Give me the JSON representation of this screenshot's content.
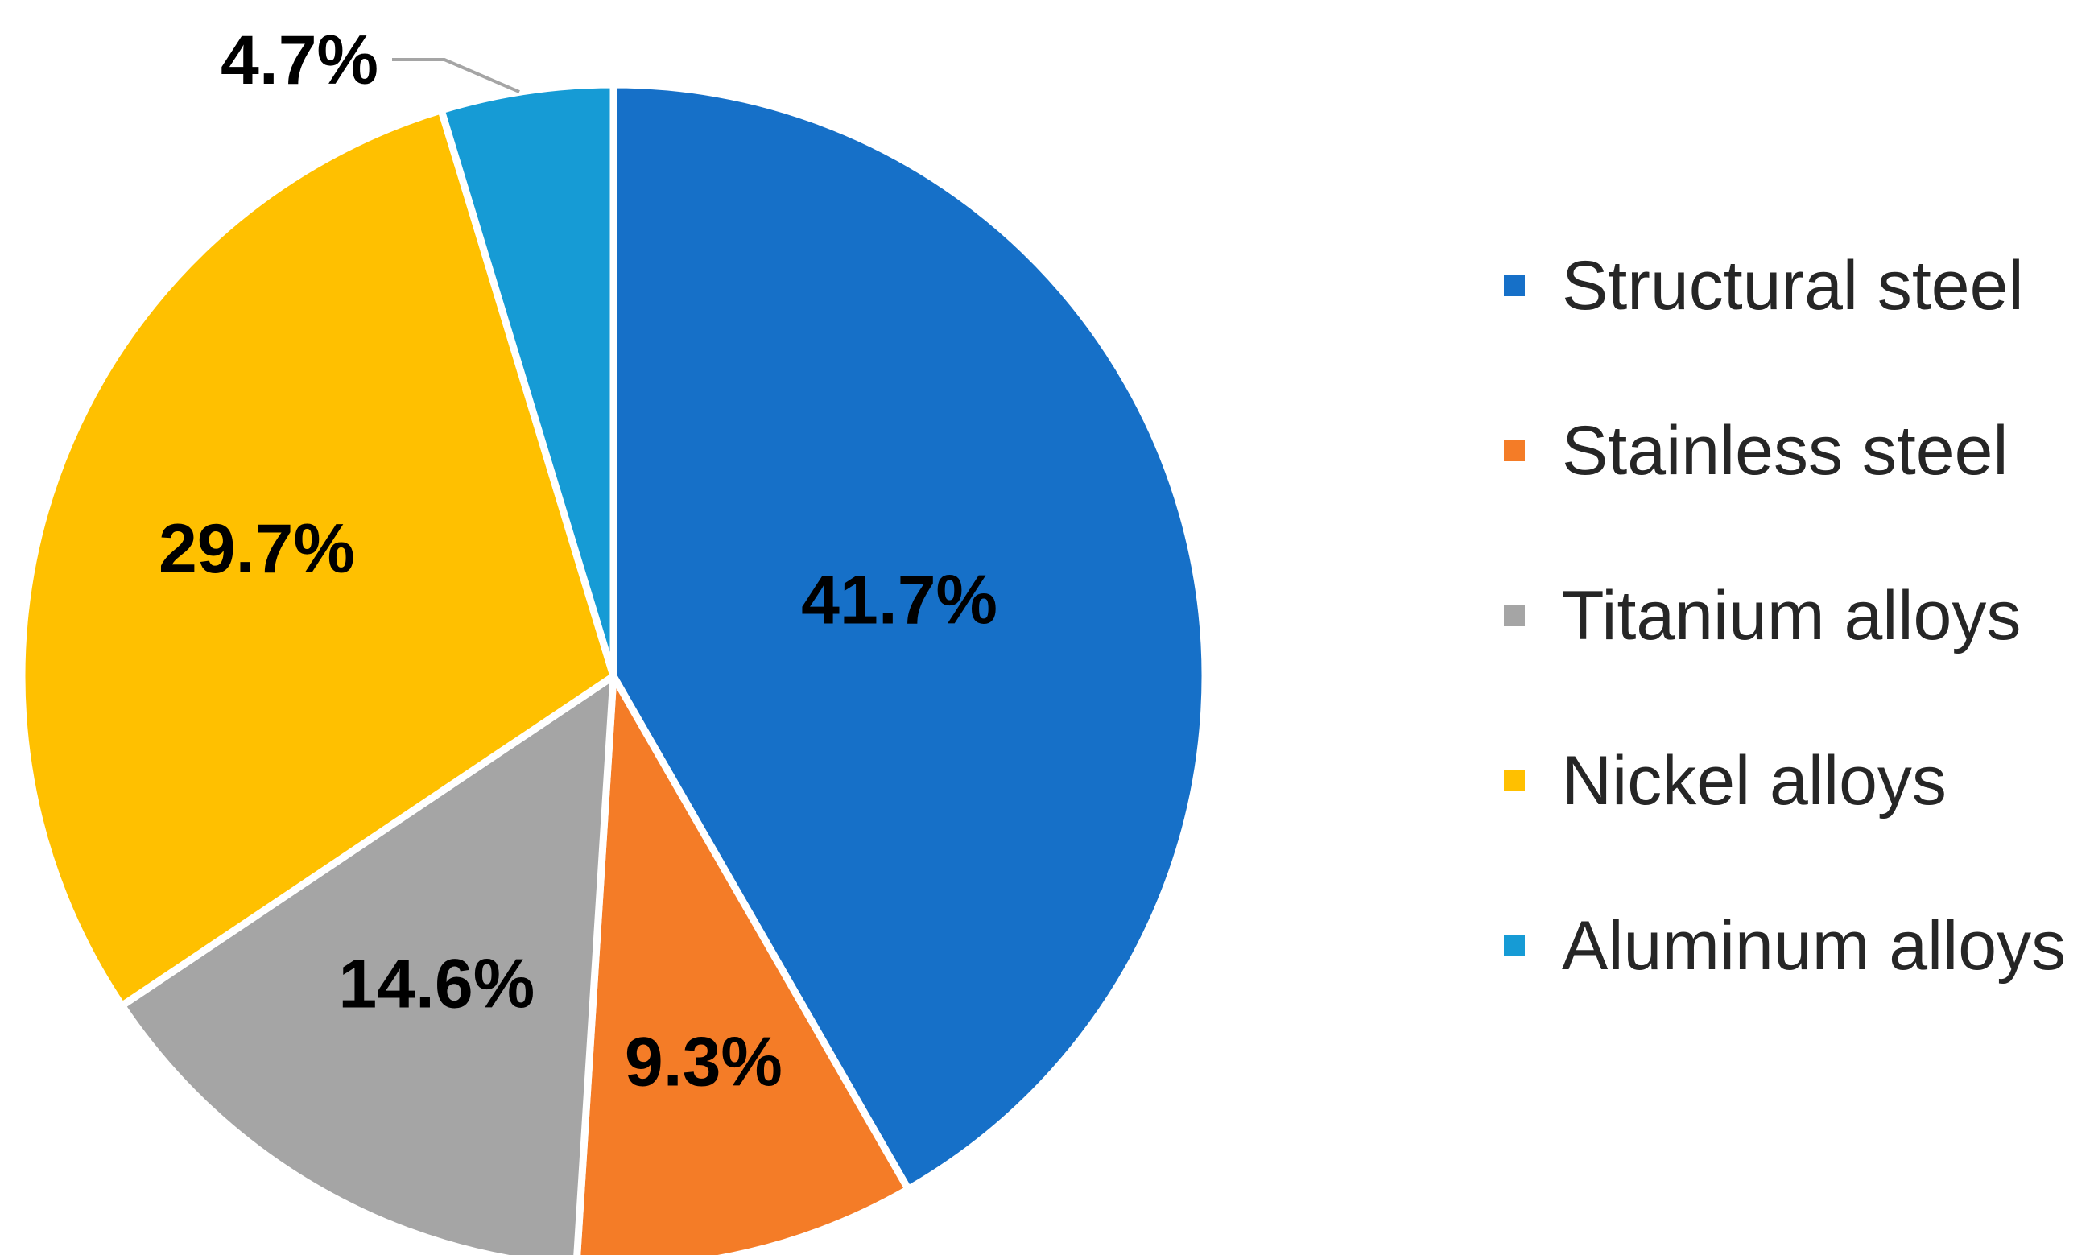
{
  "chart_data": {
    "type": "pie",
    "title": "",
    "legend_position": "right",
    "start_angle_deg": 0,
    "direction": "clockwise",
    "slices": [
      {
        "name": "Structural steel",
        "value": 41.7,
        "label": "41.7%",
        "color": "#1670C8"
      },
      {
        "name": "Stainless steel",
        "value": 9.3,
        "label": "9.3%",
        "color": "#F47C27"
      },
      {
        "name": "Titanium alloys",
        "value": 14.6,
        "label": "14.6%",
        "color": "#A5A5A5"
      },
      {
        "name": "Nickel alloys",
        "value": 29.7,
        "label": "29.7%",
        "color": "#FFC000"
      },
      {
        "name": "Aluminum alloys",
        "value": 4.7,
        "label": "4.7%",
        "color": "#169BD5"
      }
    ]
  },
  "legend": {
    "items": [
      {
        "label": "Structural steel",
        "color": "#1670C8"
      },
      {
        "label": "Stainless steel",
        "color": "#F47C27"
      },
      {
        "label": "Titanium alloys",
        "color": "#A5A5A5"
      },
      {
        "label": "Nickel alloys",
        "color": "#FFC000"
      },
      {
        "label": "Aluminum alloys",
        "color": "#169BD5"
      }
    ]
  }
}
